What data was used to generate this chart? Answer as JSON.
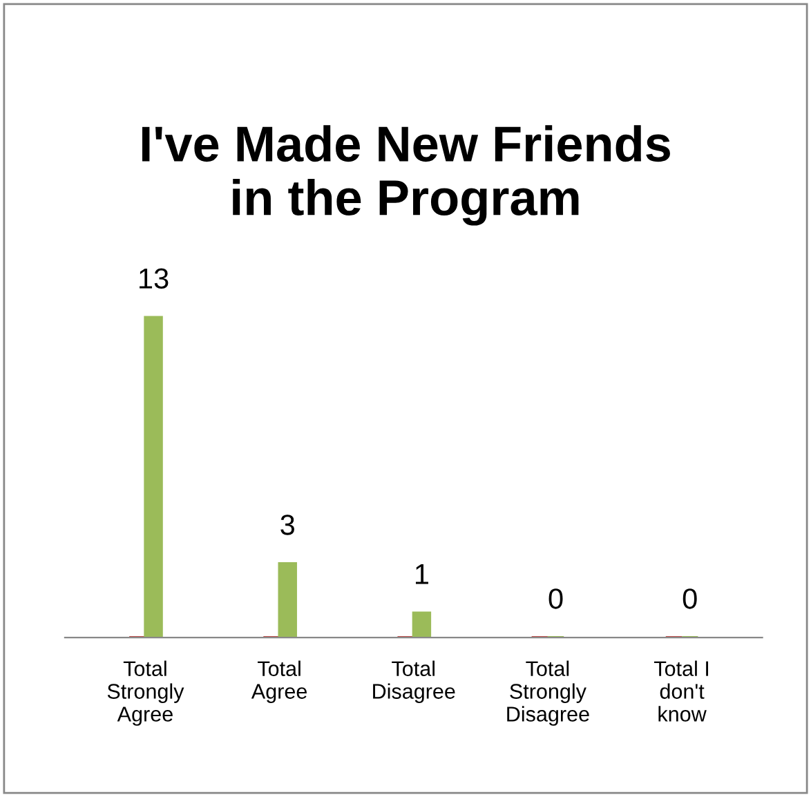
{
  "chart_data": {
    "type": "bar",
    "title": "I've Made New Friends in the Program",
    "categories": [
      "Total\nStrongly\nAgree",
      "Total\nAgree",
      "Total\nDisagree",
      "Total\nStrongly\nDisagree",
      "Total I\ndon't\nknow"
    ],
    "series": [
      {
        "color": "#c0504d",
        "values": [
          0,
          0,
          0,
          0,
          0
        ]
      },
      {
        "color": "#9bbb59",
        "values": [
          13,
          3,
          1,
          0,
          0
        ],
        "data_labels": true
      }
    ],
    "grid": false,
    "legend": false
  }
}
